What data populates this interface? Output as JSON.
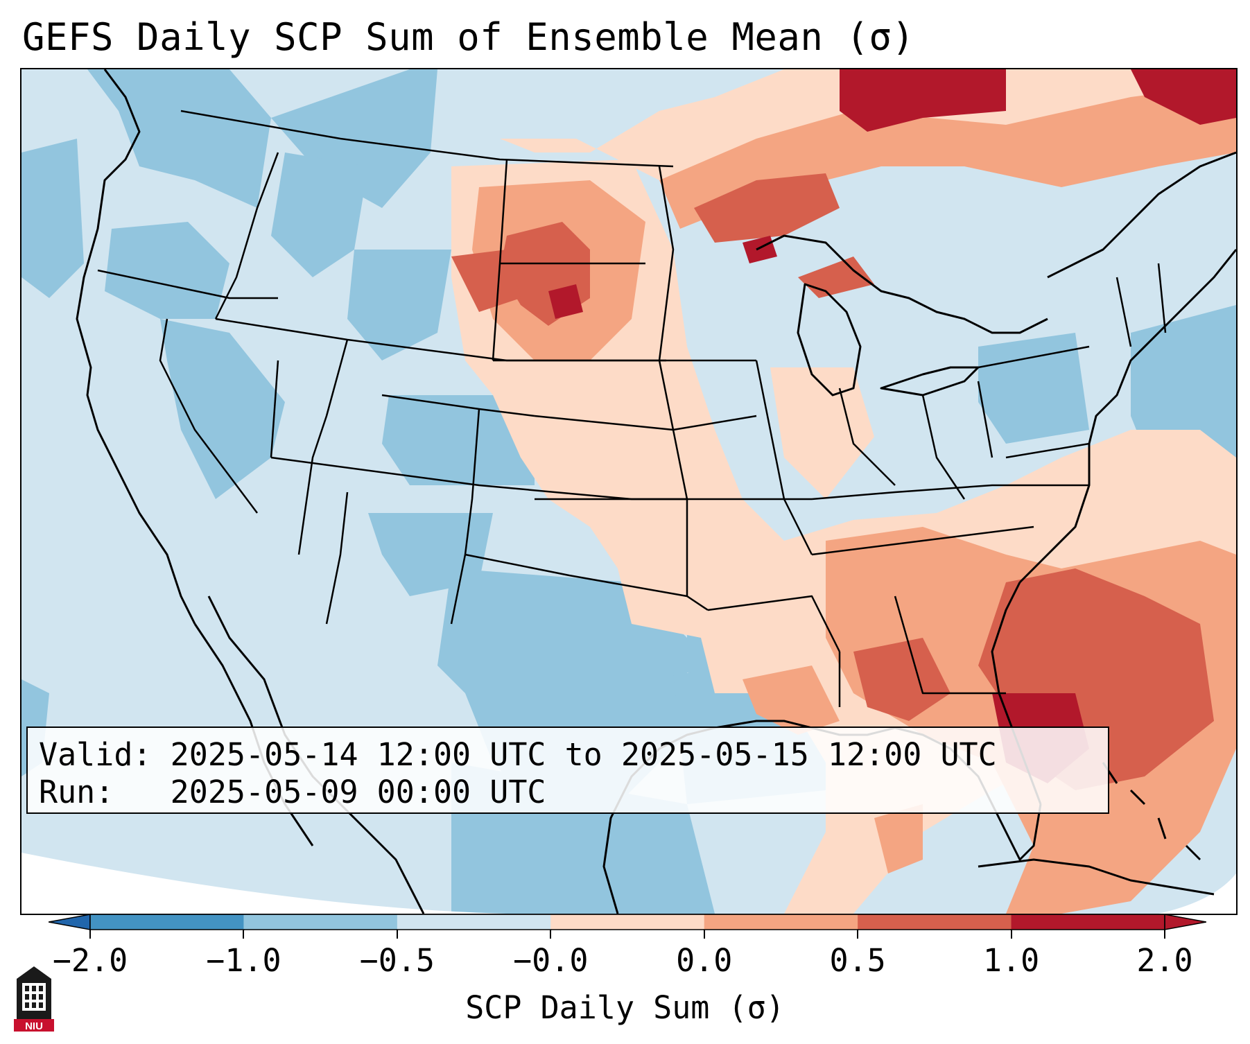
{
  "title": "GEFS Daily SCP Sum of Ensemble Mean (σ)",
  "info": {
    "valid_label": "Valid:",
    "valid_value": "2025-05-14 12:00 UTC to 2025-05-15 12:00 UTC",
    "run_label": "Run:",
    "run_value": "2025-05-09 00:00 UTC"
  },
  "colorbar": {
    "label": "SCP Daily Sum (σ)",
    "ticks": [
      "−2.0",
      "−1.0",
      "−0.5",
      "−0.0",
      "0.0",
      "0.5",
      "1.0",
      "2.0"
    ],
    "colors": [
      "#4393c3",
      "#92c5de",
      "#d1e5f0",
      "#fddbc7",
      "#f4a582",
      "#d6604d",
      "#b2182b"
    ],
    "extend_low_color": "#2166ac",
    "extend_high_color": "#b2182b"
  },
  "logo": {
    "text": "NIU",
    "icon": "niu-tower-logo-icon",
    "color": "#c8102e"
  },
  "map": {
    "region": "CONUS",
    "background_color": "#d1e5f0",
    "land_outline_color": "#000000"
  }
}
